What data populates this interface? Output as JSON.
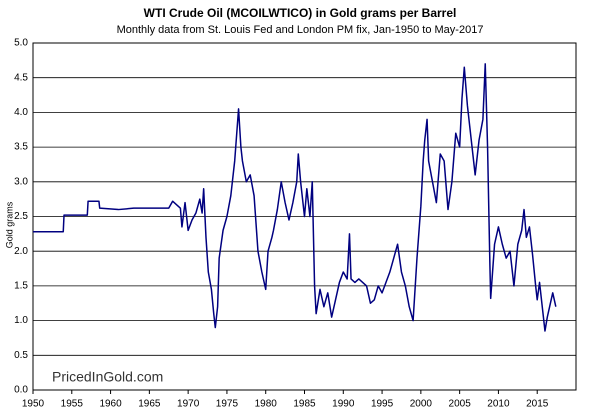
{
  "chart_data": {
    "type": "line",
    "title": "WTI Crude Oil (MCOILWTICO) in Gold grams per Barrel",
    "subtitle": "Monthly data from St. Louis Fed and London PM fix, Jan-1950 to May-2017",
    "y_label": "Gold grams",
    "annotation": "PricedInGold.com",
    "xlim": [
      1950,
      2020
    ],
    "xticks": [
      1950,
      1955,
      1960,
      1965,
      1970,
      1975,
      1980,
      1985,
      1990,
      1995,
      2000,
      2005,
      2010,
      2015
    ],
    "ylim": [
      0,
      5
    ],
    "yticks": [
      {
        "value": 0,
        "label": "0.0"
      },
      0.5,
      {
        "value": 1,
        "label": "1.0"
      },
      1.5,
      {
        "value": 2,
        "label": "2.0"
      },
      2.5,
      {
        "value": 3,
        "label": "3.0"
      },
      3.5,
      {
        "value": 4,
        "label": "4.0"
      },
      4.5,
      {
        "value": 5,
        "label": "5.0"
      }
    ],
    "grid": true,
    "x": [
      1950,
      1953.9,
      1954,
      1957,
      1957.1,
      1958.5,
      1958.6,
      1961,
      1963,
      1966,
      1967.5,
      1968,
      1969,
      1969.2,
      1969.6,
      1970,
      1970.5,
      1971,
      1971.5,
      1971.8,
      1972,
      1972.3,
      1972.6,
      1973,
      1973.3,
      1973.5,
      1973.8,
      1974,
      1974.5,
      1975,
      1975.5,
      1976,
      1976.5,
      1976.8,
      1977,
      1977.5,
      1978,
      1978.5,
      1979,
      1979.5,
      1980,
      1980.3,
      1980.8,
      1981,
      1981.5,
      1982,
      1982.5,
      1983,
      1983.5,
      1984,
      1984.2,
      1984.5,
      1985,
      1985.3,
      1985.7,
      1986,
      1986.3,
      1986.5,
      1987,
      1987.5,
      1988,
      1988.5,
      1989,
      1989.5,
      1990,
      1990.5,
      1990.8,
      1991,
      1991.5,
      1992,
      1993,
      1993.5,
      1994,
      1994.5,
      1995,
      1996,
      1996.5,
      1997,
      1997.5,
      1998,
      1998.5,
      1999,
      1999.5,
      2000,
      2000.3,
      2000.5,
      2000.8,
      2001,
      2001.5,
      2002,
      2002.5,
      2003,
      2003.5,
      2004,
      2004.5,
      2005,
      2005.3,
      2005.6,
      2006,
      2006.5,
      2007,
      2007.5,
      2008,
      2008.3,
      2008.6,
      2008.9,
      2009,
      2009.5,
      2010,
      2010.5,
      2011,
      2011.5,
      2012,
      2012.5,
      2013,
      2013.3,
      2013.6,
      2014,
      2014.4,
      2014.8,
      2015,
      2015.3,
      2015.7,
      2016,
      2016.3,
      2016.6,
      2017,
      2017.4
    ],
    "series": [
      {
        "name": "WTI in gold grams",
        "color": "#000080",
        "values": [
          2.28,
          2.28,
          2.52,
          2.52,
          2.72,
          2.72,
          2.62,
          2.6,
          2.62,
          2.62,
          2.62,
          2.72,
          2.62,
          2.35,
          2.7,
          2.3,
          2.45,
          2.55,
          2.75,
          2.55,
          2.9,
          2.2,
          1.7,
          1.45,
          1.1,
          0.9,
          1.2,
          1.9,
          2.3,
          2.5,
          2.8,
          3.3,
          4.05,
          3.5,
          3.3,
          3.0,
          3.1,
          2.8,
          2.0,
          1.7,
          1.45,
          2.0,
          2.2,
          2.3,
          2.6,
          3.0,
          2.7,
          2.45,
          2.7,
          3.0,
          3.4,
          3.0,
          2.5,
          2.9,
          2.5,
          3.0,
          1.5,
          1.1,
          1.45,
          1.2,
          1.4,
          1.05,
          1.3,
          1.55,
          1.7,
          1.6,
          2.25,
          1.6,
          1.55,
          1.6,
          1.5,
          1.25,
          1.3,
          1.5,
          1.4,
          1.7,
          1.9,
          2.1,
          1.7,
          1.5,
          1.2,
          1.0,
          1.9,
          2.65,
          3.3,
          3.6,
          3.9,
          3.3,
          3.0,
          2.7,
          3.4,
          3.3,
          2.6,
          3.0,
          3.7,
          3.5,
          4.2,
          4.65,
          4.1,
          3.6,
          3.1,
          3.6,
          3.9,
          4.7,
          3.5,
          1.8,
          1.32,
          2.1,
          2.35,
          2.1,
          1.9,
          2.0,
          1.5,
          2.1,
          2.3,
          2.6,
          2.2,
          2.35,
          1.95,
          1.5,
          1.3,
          1.55,
          1.15,
          0.85,
          1.05,
          1.2,
          1.4,
          1.2
        ]
      }
    ]
  }
}
